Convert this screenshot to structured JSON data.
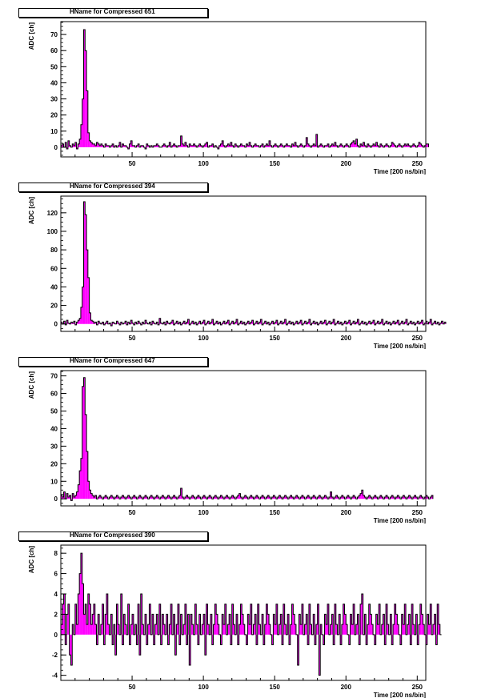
{
  "chart_data": [
    {
      "type": "bar",
      "title": "HName for Compressed 651",
      "xlabel": "Time [200 ns/bin]",
      "ylabel": "ADC [ch]",
      "xlim": [
        0,
        256
      ],
      "ylim": [
        -6,
        78
      ],
      "xticks": [
        50,
        100,
        150,
        200,
        250
      ],
      "yticks": [
        0,
        10,
        20,
        30,
        40,
        50,
        60,
        70
      ],
      "fill_color": "#ff00ff",
      "values": [
        1,
        2,
        0,
        3,
        -1,
        4,
        1,
        0,
        2,
        1,
        3,
        -1,
        2,
        5,
        14,
        30,
        73,
        60,
        35,
        9,
        4,
        3,
        2,
        2,
        1,
        3,
        2,
        1,
        2,
        1,
        0,
        2,
        1,
        1,
        0,
        1,
        2,
        0,
        1,
        0,
        1,
        3,
        0,
        2,
        1,
        1,
        0,
        -1,
        2,
        4,
        1,
        1,
        0,
        1,
        2,
        0,
        1,
        1,
        0,
        -1,
        2,
        1,
        0,
        1,
        0,
        1,
        1,
        2,
        1,
        0,
        0,
        1,
        2,
        1,
        0,
        1,
        3,
        0,
        1,
        2,
        1,
        0,
        1,
        1,
        7,
        2,
        1,
        3,
        1,
        0,
        2,
        1,
        1,
        2,
        1,
        0,
        1,
        2,
        1,
        0,
        1,
        2,
        3,
        0,
        1,
        1,
        2,
        0,
        1,
        0,
        -1,
        1,
        2,
        4,
        1,
        0,
        1,
        2,
        1,
        3,
        1,
        0,
        2,
        1,
        0,
        1,
        2,
        1,
        1,
        0,
        2,
        1,
        3,
        1,
        0,
        1,
        2,
        1,
        1,
        0,
        1,
        2,
        0,
        1,
        2,
        1,
        4,
        1,
        0,
        1,
        2,
        1,
        0,
        1,
        2,
        1,
        0,
        1,
        2,
        1,
        1,
        0,
        2,
        1,
        3,
        1,
        0,
        1,
        2,
        1,
        0,
        1,
        6,
        2,
        1,
        0,
        1,
        2,
        1,
        8,
        0,
        1,
        2,
        1,
        0,
        1,
        1,
        2,
        0,
        1,
        2,
        1,
        3,
        1,
        0,
        1,
        2,
        1,
        0,
        1,
        2,
        1,
        0,
        2,
        3,
        4,
        2,
        5,
        1,
        0,
        2,
        1,
        3,
        1,
        0,
        2,
        1,
        0,
        1,
        2,
        1,
        3,
        1,
        0,
        2,
        1,
        0,
        1,
        2,
        1,
        0,
        1,
        3,
        2,
        1,
        0,
        1,
        2,
        1,
        0,
        1,
        2,
        1,
        2,
        1,
        0,
        1,
        2,
        1,
        0,
        1,
        3,
        2,
        1,
        0,
        1,
        2,
        2
      ]
    },
    {
      "type": "bar",
      "title": "HName for Compressed 394",
      "xlabel": "Time [200 ns/bin]",
      "ylabel": "ADC [ch]",
      "xlim": [
        0,
        256
      ],
      "ylim": [
        -8,
        138
      ],
      "xticks": [
        50,
        100,
        150,
        200,
        250
      ],
      "yticks": [
        0,
        20,
        40,
        60,
        80,
        100,
        120
      ],
      "fill_color": "#ff00ff",
      "values": [
        2,
        0,
        3,
        -1,
        4,
        1,
        0,
        2,
        1,
        3,
        -1,
        2,
        4,
        6,
        18,
        40,
        132,
        118,
        80,
        50,
        12,
        4,
        3,
        1,
        2,
        -1,
        3,
        1,
        0,
        2,
        -1,
        1,
        3,
        0,
        1,
        -2,
        2,
        1,
        0,
        3,
        1,
        -1,
        2,
        0,
        1,
        3,
        -1,
        2,
        0,
        4,
        1,
        -1,
        2,
        0,
        3,
        1,
        -1,
        2,
        0,
        4,
        1,
        0,
        2,
        -1,
        3,
        1,
        0,
        2,
        -1,
        6,
        1,
        0,
        2,
        -1,
        3,
        1,
        0,
        2,
        4,
        -1,
        1,
        3,
        0,
        2,
        -1,
        1,
        3,
        0,
        2,
        5,
        -1,
        1,
        3,
        0,
        2,
        -1,
        1,
        3,
        0,
        2,
        4,
        -1,
        1,
        3,
        0,
        2,
        5,
        -1,
        1,
        3,
        0,
        2,
        -1,
        1,
        3,
        0,
        2,
        4,
        -1,
        1,
        3,
        0,
        2,
        5,
        -1,
        1,
        3,
        0,
        2,
        -1,
        1,
        3,
        0,
        2,
        4,
        -1,
        1,
        3,
        0,
        2,
        5,
        -1,
        1,
        3,
        0,
        2,
        -1,
        1,
        3,
        0,
        2,
        4,
        -1,
        1,
        3,
        0,
        2,
        5,
        -1,
        1,
        3,
        0,
        2,
        -1,
        1,
        3,
        0,
        2,
        4,
        -1,
        1,
        3,
        0,
        2,
        5,
        -1,
        1,
        3,
        0,
        2,
        -1,
        1,
        3,
        0,
        2,
        4,
        -1,
        1,
        3,
        0,
        2,
        5,
        -1,
        1,
        3,
        0,
        2,
        -1,
        1,
        3,
        0,
        2,
        4,
        -1,
        1,
        3,
        0,
        2,
        5,
        -1,
        1,
        3,
        0,
        2,
        -1,
        1,
        3,
        0,
        2,
        4,
        -1,
        1,
        3,
        0,
        2,
        5,
        -1,
        1,
        3,
        0,
        2,
        -1,
        1,
        3,
        0,
        2,
        4,
        -1,
        1,
        3,
        0,
        2,
        5,
        -1,
        1,
        3,
        0,
        2,
        -1,
        1,
        3,
        0,
        2,
        4,
        -1,
        1,
        3,
        0,
        2,
        5,
        -1,
        1,
        3,
        0,
        2,
        -1,
        1,
        3,
        0,
        2
      ]
    },
    {
      "type": "bar",
      "title": "HName for Compressed 647",
      "xlabel": "Time [200 ns/bin]",
      "ylabel": "ADC [ch]",
      "xlim": [
        0,
        256
      ],
      "ylim": [
        -4,
        73
      ],
      "xticks": [
        50,
        100,
        150,
        200,
        250
      ],
      "yticks": [
        0,
        10,
        20,
        30,
        40,
        50,
        60,
        70
      ],
      "fill_color": "#ff00ff",
      "values": [
        2,
        1,
        4,
        0,
        3,
        1,
        2,
        -1,
        3,
        1,
        2,
        4,
        8,
        16,
        23,
        64,
        69,
        48,
        27,
        10,
        5,
        3,
        2,
        1,
        2,
        0,
        1,
        2,
        1,
        0,
        1,
        2,
        1,
        0,
        1,
        2,
        1,
        0,
        1,
        2,
        1,
        0,
        1,
        2,
        1,
        0,
        1,
        2,
        1,
        0,
        1,
        2,
        1,
        0,
        1,
        2,
        1,
        0,
        1,
        2,
        1,
        0,
        1,
        2,
        1,
        0,
        1,
        2,
        1,
        0,
        1,
        2,
        1,
        0,
        1,
        2,
        1,
        0,
        1,
        2,
        1,
        0,
        1,
        2,
        6,
        1,
        0,
        1,
        2,
        1,
        0,
        1,
        2,
        1,
        0,
        1,
        2,
        1,
        0,
        1,
        2,
        1,
        0,
        1,
        2,
        1,
        0,
        1,
        2,
        1,
        0,
        1,
        2,
        1,
        0,
        1,
        2,
        1,
        0,
        1,
        2,
        1,
        0,
        1,
        2,
        3,
        1,
        0,
        1,
        2,
        1,
        0,
        1,
        2,
        1,
        0,
        1,
        2,
        1,
        0,
        1,
        2,
        1,
        0,
        1,
        2,
        1,
        0,
        1,
        2,
        1,
        0,
        1,
        2,
        1,
        0,
        1,
        2,
        1,
        0,
        1,
        2,
        1,
        0,
        1,
        2,
        1,
        0,
        1,
        2,
        1,
        0,
        1,
        2,
        1,
        0,
        1,
        2,
        1,
        0,
        1,
        2,
        1,
        0,
        1,
        2,
        1,
        0,
        1,
        4,
        1,
        0,
        1,
        2,
        1,
        0,
        1,
        2,
        1,
        0,
        1,
        2,
        1,
        0,
        1,
        2,
        1,
        0,
        1,
        2,
        3,
        5,
        2,
        1,
        0,
        1,
        2,
        1,
        0,
        1,
        2,
        1,
        0,
        1,
        2,
        1,
        0,
        1,
        2,
        1,
        0,
        1,
        2,
        1,
        0,
        1,
        2,
        1,
        0,
        1,
        2,
        1,
        0,
        1,
        2,
        1,
        0,
        1,
        2,
        1,
        0,
        1,
        2,
        1,
        0,
        1,
        2,
        1,
        0,
        1,
        2
      ]
    },
    {
      "type": "bar",
      "title": "HName for Compressed 390",
      "xlabel": "Time [200 ns/bin]",
      "ylabel": "ADC [ch]",
      "xlim": [
        0,
        256
      ],
      "ylim": [
        -4.5,
        8.8
      ],
      "xticks": [
        50,
        100,
        150,
        200,
        250
      ],
      "yticks": [
        -4,
        -2,
        0,
        2,
        4,
        6,
        8
      ],
      "fill_color": "#ff00ff",
      "values": [
        1,
        3,
        4,
        -1,
        2,
        3,
        -2,
        -3,
        1,
        0,
        3,
        1,
        4,
        6,
        8,
        5,
        2,
        3,
        1,
        4,
        3,
        1,
        2,
        3,
        1,
        -1,
        2,
        0,
        1,
        3,
        -1,
        2,
        4,
        1,
        0,
        2,
        -1,
        1,
        -2,
        3,
        1,
        0,
        4,
        -1,
        2,
        1,
        0,
        3,
        -1,
        1,
        2,
        0,
        1,
        -1,
        3,
        -2,
        4,
        1,
        0,
        2,
        -1,
        1,
        3,
        0,
        2,
        -1,
        1,
        2,
        0,
        3,
        -1,
        2,
        1,
        0,
        2,
        -1,
        1,
        3,
        0,
        2,
        -2,
        1,
        3,
        -1,
        2,
        0,
        1,
        3,
        -1,
        2,
        -3,
        2,
        1,
        0,
        3,
        1,
        -1,
        2,
        0,
        1,
        2,
        -2,
        3,
        1,
        0,
        2,
        -1,
        1,
        3,
        2,
        1,
        0,
        -1,
        2,
        1,
        3,
        0,
        1,
        2,
        -1,
        3,
        1,
        0,
        2,
        -1,
        1,
        3,
        2,
        1,
        0,
        -1,
        2,
        1,
        3,
        0,
        1,
        2,
        -1,
        3,
        1,
        0,
        2,
        -1,
        1,
        3,
        2,
        1,
        0,
        -1,
        2,
        1,
        3,
        0,
        1,
        2,
        -1,
        3,
        1,
        0,
        2,
        -1,
        1,
        3,
        2,
        1,
        0,
        -3,
        2,
        1,
        3,
        0,
        1,
        2,
        -1,
        3,
        1,
        0,
        2,
        -1,
        1,
        3,
        -4,
        1,
        0,
        -1,
        2,
        1,
        3,
        0,
        1,
        2,
        -1,
        3,
        1,
        0,
        2,
        -1,
        1,
        3,
        2,
        1,
        0,
        -1,
        2,
        1,
        3,
        0,
        1,
        2,
        -1,
        3,
        4,
        0,
        2,
        -1,
        1,
        3,
        2,
        1,
        0,
        -1,
        2,
        1,
        3,
        0,
        1,
        2,
        -1,
        3,
        1,
        0,
        2,
        -1,
        1,
        3,
        2,
        1,
        0,
        -1,
        2,
        1,
        3,
        0,
        1,
        2,
        -1,
        3,
        1,
        0,
        2,
        -1,
        1,
        3,
        2,
        1,
        0,
        -1,
        2,
        1,
        3,
        0,
        1,
        2,
        -1,
        3,
        1,
        0
      ]
    }
  ]
}
